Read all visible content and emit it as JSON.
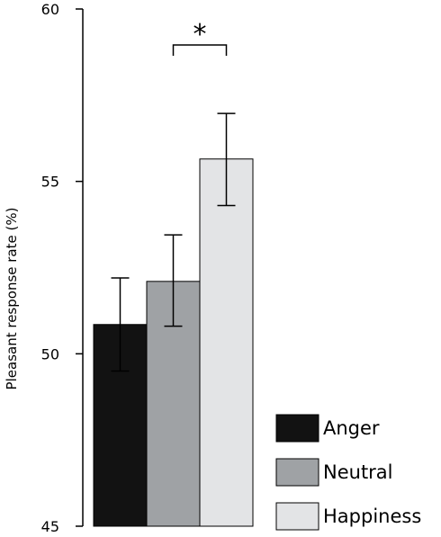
{
  "chart_data": {
    "type": "bar",
    "title": "",
    "xlabel": "",
    "ylabel": "Pleasant response rate (%)",
    "ylim": [
      45,
      60
    ],
    "yticks": [
      45,
      50,
      55,
      60
    ],
    "categories": [
      "Anger",
      "Neutral",
      "Happiness"
    ],
    "values": [
      50.85,
      52.1,
      55.65
    ],
    "error_low": [
      49.5,
      50.8,
      54.3
    ],
    "error_high": [
      52.2,
      53.45,
      56.97
    ],
    "colors": [
      "#121212",
      "#9fa2a5",
      "#e3e4e6"
    ],
    "legend": {
      "placement": "bottom-right",
      "entries": [
        "Anger",
        "Neutral",
        "Happiness"
      ]
    },
    "annotations": [
      {
        "type": "significance",
        "label": "*",
        "between": [
          "Neutral",
          "Happiness"
        ]
      }
    ]
  }
}
